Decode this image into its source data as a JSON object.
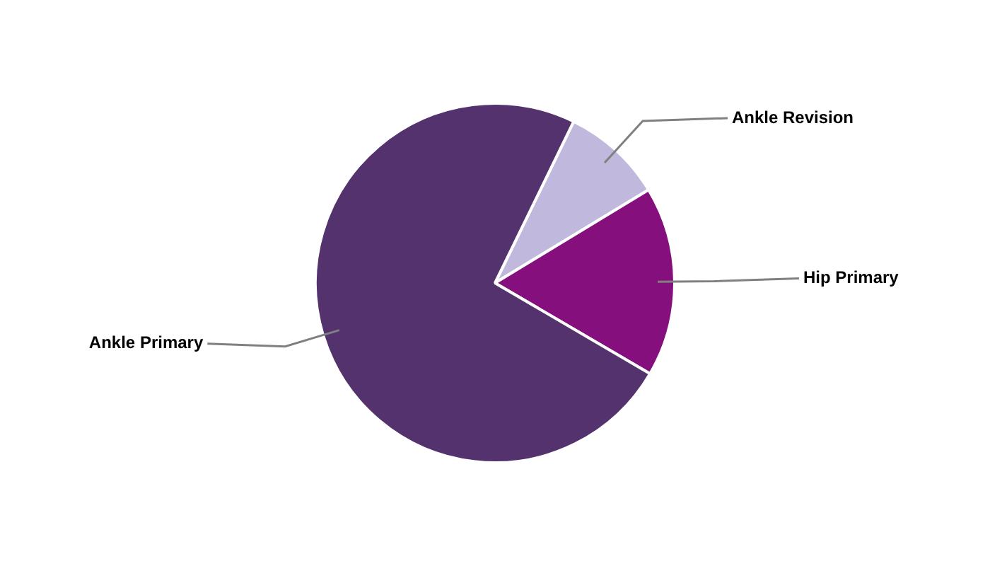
{
  "chart_data": {
    "type": "pie",
    "categories": [
      "Ankle Revision",
      "Hip Primary",
      "Ankle Primary"
    ],
    "values": [
      9.1,
      17.1,
      73.8
    ],
    "colors": [
      "#c0b9dd",
      "#85107d",
      "#54326e"
    ],
    "legend": false
  }
}
